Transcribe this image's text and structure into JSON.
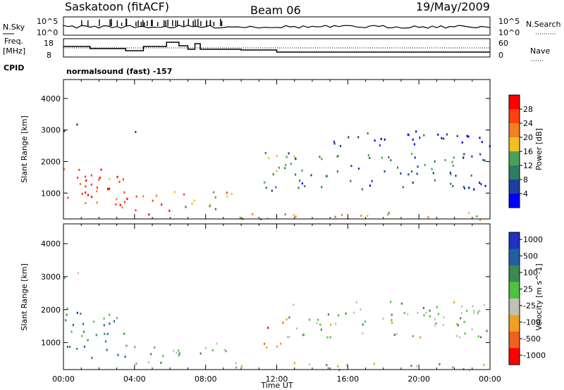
{
  "header": {
    "station": "Saskatoon (fitACF)",
    "beam": "Beam 06",
    "date": "19/May/2009"
  },
  "noise_panel": {
    "left_label": "N.Sky",
    "right_label": "N.Search",
    "left_ticks": [
      "10^5",
      "10^0"
    ],
    "right_ticks": [
      "10^5",
      "10^0"
    ]
  },
  "freq_panel": {
    "left_label_1": "Freq.",
    "left_label_2": "[MHz]",
    "right_label": "Nave",
    "left_ticks": [
      "18",
      "8"
    ],
    "right_ticks": [
      "60",
      "0"
    ],
    "cpid_label": "CPID",
    "cpid_value": "normalsound (fast) -157"
  },
  "colors": {
    "power": [
      "#0000ff",
      "#1e3fa0",
      "#2e7d5e",
      "#4aa05a",
      "#f0c020",
      "#f08020",
      "#ff4010",
      "#ff0000"
    ],
    "velocity": [
      "#2030c0",
      "#2060a0",
      "#3a8a50",
      "#50c040",
      "#c0c0b8",
      "#f0a020",
      "#f06020",
      "#ff0000"
    ]
  },
  "chart_data": [
    {
      "type": "heatmap",
      "title": "Power",
      "xlabel": "",
      "ylabel": "Slant Range [km]",
      "xlim": [
        "00:00",
        "24:00"
      ],
      "ylim": [
        180,
        4600
      ],
      "yticks": [
        "1000",
        "2000",
        "3000",
        "4000"
      ],
      "colorbar_label": "Power [dB]",
      "colorbar_ticks": [
        "4",
        "8",
        "12",
        "16",
        "20",
        "24",
        "28"
      ],
      "colorbar_range": [
        0,
        32
      ],
      "regions": [
        {
          "t0": 0.0,
          "t1": 3.6,
          "r0": 500,
          "r1": 1900,
          "level": 0.78
        },
        {
          "t0": 1.4,
          "t1": 3.2,
          "r0": 1100,
          "r1": 1600,
          "level": 0.95
        },
        {
          "t0": 0.0,
          "t1": 0.8,
          "r0": 2900,
          "r1": 3300,
          "level": 0.3
        },
        {
          "t0": 3.4,
          "t1": 6.2,
          "r0": 350,
          "r1": 1000,
          "level": 0.85
        },
        {
          "t0": 5.8,
          "t1": 9.6,
          "r0": 700,
          "r1": 1100,
          "level": 0.65
        },
        {
          "t0": 6.2,
          "t1": 9.4,
          "r0": 400,
          "r1": 700,
          "level": 0.4
        },
        {
          "t0": 9.5,
          "t1": 24.0,
          "r0": 180,
          "r1": 420,
          "level": 0.55
        },
        {
          "t0": 11.0,
          "t1": 13.2,
          "r0": 1100,
          "r1": 2400,
          "level": 0.35
        },
        {
          "t0": 12.0,
          "t1": 24.0,
          "r0": 1150,
          "r1": 1450,
          "level": 0.2
        },
        {
          "t0": 12.5,
          "t1": 24.0,
          "r0": 1550,
          "r1": 2300,
          "level": 0.3
        },
        {
          "t0": 14.0,
          "t1": 24.0,
          "r0": 2500,
          "r1": 3000,
          "level": 0.15
        },
        {
          "t0": 3.6,
          "t1": 4.2,
          "r0": 2700,
          "r1": 3100,
          "level": 0.3
        }
      ]
    },
    {
      "type": "heatmap",
      "title": "Velocity",
      "xlabel": "Time UT",
      "ylabel": "Slant Range [km]",
      "xlim": [
        "00:00",
        "24:00"
      ],
      "ylim": [
        180,
        4600
      ],
      "xticks": [
        "00:00",
        "04:00",
        "08:00",
        "12:00",
        "16:00",
        "20:00",
        "00:00"
      ],
      "yticks": [
        "1000",
        "2000",
        "3000",
        "4000"
      ],
      "colorbar_label": "Velocity [m s^-1]",
      "colorbar_ticks": [
        "1000",
        "500",
        "100",
        "25",
        "-25",
        "-100",
        "-500",
        "-1000"
      ],
      "regions": [
        {
          "t0": 0.0,
          "t1": 3.6,
          "r0": 500,
          "r1": 1900,
          "level": 0.3
        },
        {
          "t0": 0.0,
          "t1": 1.2,
          "r0": 1500,
          "r1": 2100,
          "level": 0.22
        },
        {
          "t0": 3.4,
          "t1": 6.5,
          "r0": 350,
          "r1": 1000,
          "level": 0.45
        },
        {
          "t0": 6.0,
          "t1": 9.6,
          "r0": 700,
          "r1": 1100,
          "level": 0.5
        },
        {
          "t0": 9.5,
          "t1": 24.0,
          "r0": 180,
          "r1": 420,
          "level": 0.5
        },
        {
          "t0": 11.2,
          "t1": 12.6,
          "r0": 800,
          "r1": 1500,
          "level": 0.75
        },
        {
          "t0": 12.3,
          "t1": 13.0,
          "r0": 1500,
          "r1": 2100,
          "level": 0.78
        },
        {
          "t0": 12.5,
          "t1": 24.0,
          "r0": 1150,
          "r1": 2300,
          "level": 0.5
        },
        {
          "t0": 0.0,
          "t1": 0.8,
          "r0": 2900,
          "r1": 3300,
          "level": 0.5
        }
      ]
    }
  ]
}
